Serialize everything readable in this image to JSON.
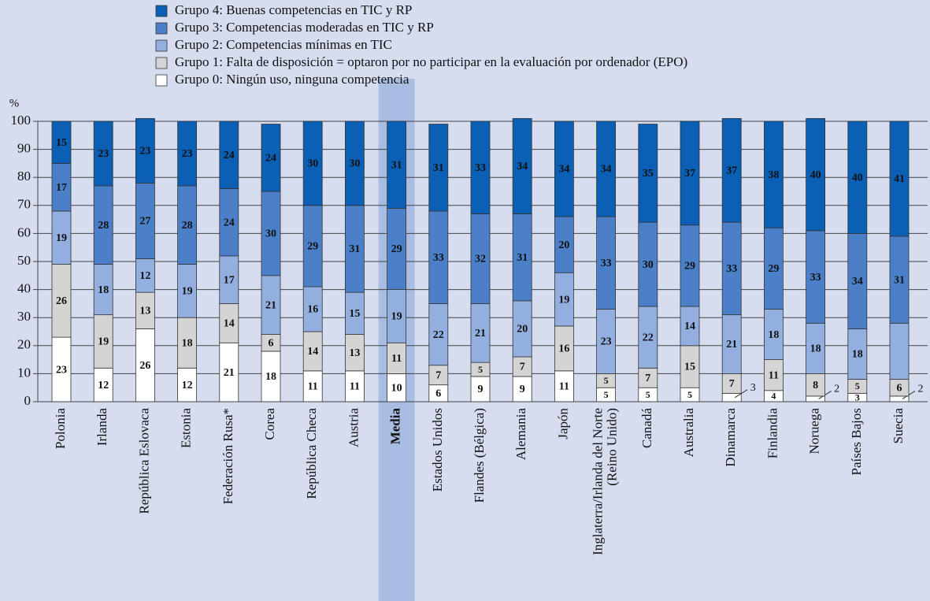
{
  "chart_data": {
    "type": "stacked_bar",
    "y_label": "%",
    "categories": [
      "Polonia",
      "Irlanda",
      "República Eslovaca",
      "Estonia",
      "Federación Rusa*",
      "Corea",
      "República Checa",
      "Austria",
      "Media",
      "Estados Unidos",
      "Flandes (Bélgica)",
      "Alemania",
      "Japón",
      "Inglaterra/Irlanda del Norte\n(Reino Unido)",
      "Canadá",
      "Australia",
      "Dinamarca",
      "Finlandia",
      "Noruega",
      "Países Bajos",
      "Suecia"
    ],
    "highlight_category": "Media",
    "series": [
      {
        "name": "Grupo 0: Ningún uso, ninguna competencia",
        "color": "#ffffff",
        "values": [
          23,
          12,
          26,
          12,
          21,
          18,
          11,
          11,
          10,
          6,
          9,
          9,
          11,
          5,
          5,
          5,
          3,
          4,
          2,
          3,
          2
        ]
      },
      {
        "name": "Grupo 1: Falta de disposición = optaron por no participar en la evaluación por ordenador (EPO)",
        "color": "#d4d4d4",
        "values": [
          26,
          19,
          13,
          18,
          14,
          6,
          14,
          13,
          11,
          7,
          5,
          7,
          16,
          5,
          7,
          15,
          7,
          11,
          8,
          5,
          6
        ]
      },
      {
        "name": "Grupo 2: Competencias mínimas en TIC",
        "color": "#93afdf",
        "values": [
          19,
          18,
          12,
          19,
          17,
          21,
          16,
          15,
          19,
          22,
          21,
          20,
          19,
          23,
          22,
          14,
          21,
          18,
          18,
          18,
          20
        ],
        "value_labels": [
          "19",
          "18",
          "12",
          "19",
          "17",
          "21",
          "16",
          "15",
          "19",
          "22",
          "21",
          "20",
          "19",
          "23",
          "22",
          "14",
          "21",
          "18",
          "18",
          "18",
          null
        ]
      },
      {
        "name": "Grupo 3: Competencias moderadas en TIC y RP",
        "color": "#4b80c8",
        "values": [
          17,
          28,
          27,
          28,
          24,
          30,
          29,
          31,
          29,
          33,
          32,
          31,
          20,
          33,
          30,
          29,
          33,
          29,
          33,
          34,
          31
        ]
      },
      {
        "name": "Grupo 4: Buenas competencias en TIC y RP",
        "color": "#0b5fb5",
        "values": [
          15,
          23,
          23,
          23,
          24,
          24,
          30,
          30,
          31,
          31,
          33,
          34,
          34,
          34,
          35,
          37,
          37,
          38,
          40,
          40,
          41
        ]
      }
    ],
    "ylim": [
      0,
      100
    ],
    "yticks": [
      0,
      10,
      20,
      30,
      40,
      50,
      60,
      70,
      80,
      90,
      100
    ],
    "grid": true
  }
}
